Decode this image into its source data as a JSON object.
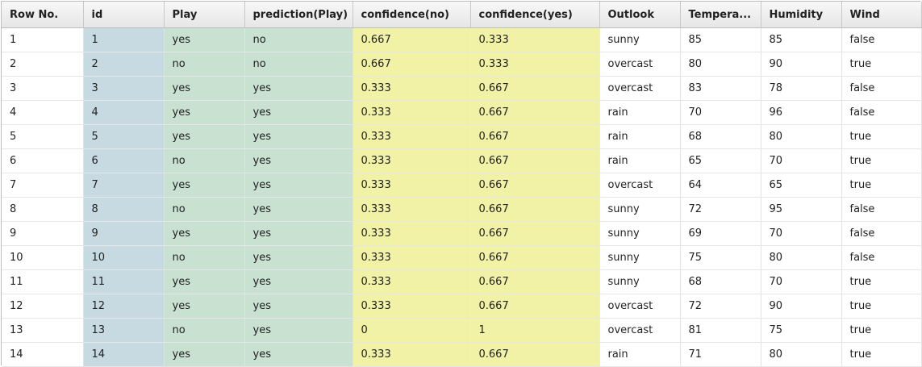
{
  "table": {
    "columns": [
      "Row No.",
      "id",
      "Play",
      "prediction(Play)",
      "confidence(no)",
      "confidence(yes)",
      "Outlook",
      "Tempera...",
      "Humidity",
      "Wind"
    ],
    "rows": [
      [
        "1",
        "1",
        "yes",
        "no",
        "0.667",
        "0.333",
        "sunny",
        "85",
        "85",
        "false"
      ],
      [
        "2",
        "2",
        "no",
        "no",
        "0.667",
        "0.333",
        "overcast",
        "80",
        "90",
        "true"
      ],
      [
        "3",
        "3",
        "yes",
        "yes",
        "0.333",
        "0.667",
        "overcast",
        "83",
        "78",
        "false"
      ],
      [
        "4",
        "4",
        "yes",
        "yes",
        "0.333",
        "0.667",
        "rain",
        "70",
        "96",
        "false"
      ],
      [
        "5",
        "5",
        "yes",
        "yes",
        "0.333",
        "0.667",
        "rain",
        "68",
        "80",
        "true"
      ],
      [
        "6",
        "6",
        "no",
        "yes",
        "0.333",
        "0.667",
        "rain",
        "65",
        "70",
        "true"
      ],
      [
        "7",
        "7",
        "yes",
        "yes",
        "0.333",
        "0.667",
        "overcast",
        "64",
        "65",
        "true"
      ],
      [
        "8",
        "8",
        "no",
        "yes",
        "0.333",
        "0.667",
        "sunny",
        "72",
        "95",
        "false"
      ],
      [
        "9",
        "9",
        "yes",
        "yes",
        "0.333",
        "0.667",
        "sunny",
        "69",
        "70",
        "false"
      ],
      [
        "10",
        "10",
        "no",
        "yes",
        "0.333",
        "0.667",
        "sunny",
        "75",
        "80",
        "false"
      ],
      [
        "11",
        "11",
        "yes",
        "yes",
        "0.333",
        "0.667",
        "sunny",
        "68",
        "70",
        "true"
      ],
      [
        "12",
        "12",
        "yes",
        "yes",
        "0.333",
        "0.667",
        "overcast",
        "72",
        "90",
        "true"
      ],
      [
        "13",
        "13",
        "no",
        "yes",
        "0",
        "1",
        "overcast",
        "81",
        "75",
        "true"
      ],
      [
        "14",
        "14",
        "yes",
        "yes",
        "0.333",
        "0.667",
        "rain",
        "71",
        "80",
        "true"
      ]
    ]
  },
  "colors": {
    "id_column": "#c7d9e1",
    "label_columns": "#c8e1d0",
    "confidence_columns": "#f2f2a7",
    "regular_columns": "#ffffff"
  }
}
